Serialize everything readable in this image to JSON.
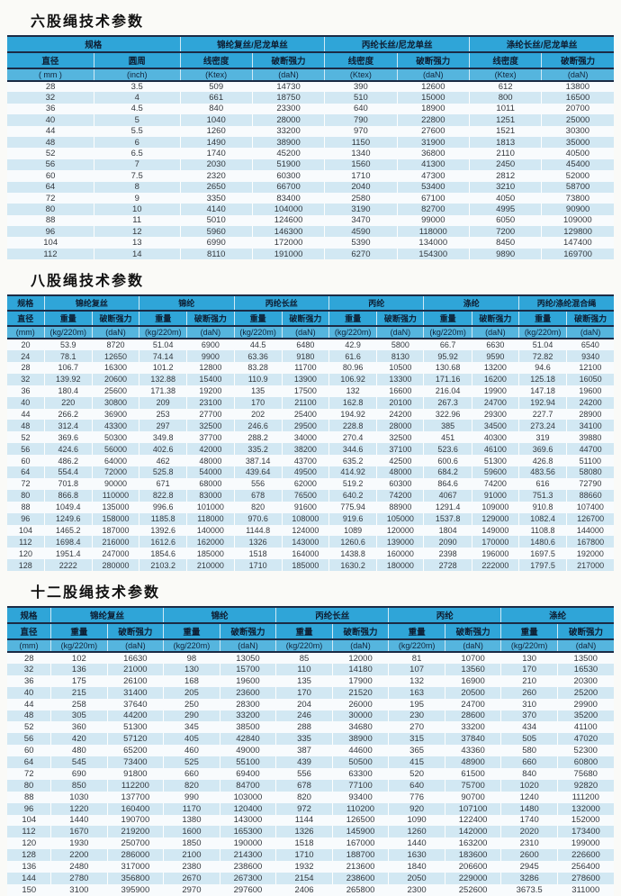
{
  "colors": {
    "header_blue": "#2fa5d8",
    "unit_row_blue": "#55b5de",
    "dark_line": "#1b2b45",
    "striped_row": "#d2e8f3",
    "plain_row": "#f8fbfd"
  },
  "tables": [
    {
      "title": "六股绳技术参数",
      "col_widths": [
        "14.3%",
        "14.2%",
        "11.9%",
        "11.95%",
        "11.9%",
        "11.95%",
        "11.9%",
        "11.9%"
      ],
      "groups": [
        {
          "label": "规格",
          "span": 2
        },
        {
          "label": "锦纶复丝/尼龙单丝",
          "span": 2
        },
        {
          "label": "丙纶长丝/尼龙单丝",
          "span": 2
        },
        {
          "label": "涤纶长丝/尼龙单丝",
          "span": 2
        }
      ],
      "subheaders": [
        "直径",
        "圆周",
        "线密度",
        "破断强力",
        "线密度",
        "破断强力",
        "线密度",
        "破断强力"
      ],
      "units": [
        "( mm )",
        "(inch)",
        "(Ktex)",
        "(daN)",
        "(Ktex)",
        "(daN)",
        "(Ktex)",
        "(daN)"
      ],
      "rows": [
        [
          "28",
          "3.5",
          "509",
          "14730",
          "390",
          "12600",
          "612",
          "13800"
        ],
        [
          "32",
          "4",
          "661",
          "18750",
          "510",
          "15000",
          "800",
          "16500"
        ],
        [
          "36",
          "4.5",
          "840",
          "23300",
          "640",
          "18900",
          "1011",
          "20700"
        ],
        [
          "40",
          "5",
          "1040",
          "28000",
          "790",
          "22800",
          "1251",
          "25000"
        ],
        [
          "44",
          "5.5",
          "1260",
          "33200",
          "970",
          "27600",
          "1521",
          "30300"
        ],
        [
          "48",
          "6",
          "1490",
          "38900",
          "1150",
          "31900",
          "1813",
          "35000"
        ],
        [
          "52",
          "6.5",
          "1740",
          "45200",
          "1340",
          "36800",
          "2110",
          "40500"
        ],
        [
          "56",
          "7",
          "2030",
          "51900",
          "1560",
          "41300",
          "2450",
          "45400"
        ],
        [
          "60",
          "7.5",
          "2320",
          "60300",
          "1710",
          "47300",
          "2812",
          "52000"
        ],
        [
          "64",
          "8",
          "2650",
          "66700",
          "2040",
          "53400",
          "3210",
          "58700"
        ],
        [
          "72",
          "9",
          "3350",
          "83400",
          "2580",
          "67100",
          "4050",
          "73800"
        ],
        [
          "80",
          "10",
          "4140",
          "104000",
          "3190",
          "82700",
          "4995",
          "90900"
        ],
        [
          "88",
          "11",
          "5010",
          "124600",
          "3470",
          "99000",
          "6050",
          "109000"
        ],
        [
          "96",
          "12",
          "5960",
          "146300",
          "4590",
          "118000",
          "7200",
          "129800"
        ],
        [
          "104",
          "13",
          "6990",
          "172000",
          "5390",
          "134000",
          "8450",
          "147400"
        ],
        [
          "112",
          "14",
          "8110",
          "191000",
          "6270",
          "154300",
          "9890",
          "169700"
        ]
      ]
    },
    {
      "title": "八股绳技术参数",
      "col_widths": [
        "6.1%",
        "7.9%",
        "7.75%",
        "7.9%",
        "7.75%",
        "7.9%",
        "7.75%",
        "7.9%",
        "7.75%",
        "7.9%",
        "7.75%",
        "7.9%",
        "7.75%"
      ],
      "groups": [
        {
          "label": "规格",
          "span": 1
        },
        {
          "label": "锦纶复丝",
          "span": 2
        },
        {
          "label": "锦纶",
          "span": 2
        },
        {
          "label": "丙纶长丝",
          "span": 2
        },
        {
          "label": "丙纶",
          "span": 2
        },
        {
          "label": "涤纶",
          "span": 2
        },
        {
          "label": "丙纶/涤纶混合绳",
          "span": 2
        }
      ],
      "subheaders": [
        "直径",
        "重量",
        "破断强力",
        "重量",
        "破断强力",
        "重量",
        "破断强力",
        "重量",
        "破断强力",
        "重量",
        "破断强力",
        "重量",
        "破断强力"
      ],
      "units": [
        "(mm)",
        "(kg/220m)",
        "(daN)",
        "(kg/220m)",
        "(daN)",
        "(kg/220m)",
        "(daN)",
        "(kg/220m)",
        "(daN)",
        "(kg/220m)",
        "(daN)",
        "(kg/220m)",
        "(daN)"
      ],
      "rows": [
        [
          "20",
          "53.9",
          "8720",
          "51.04",
          "6900",
          "44.5",
          "6480",
          "42.9",
          "5800",
          "66.7",
          "6630",
          "51.04",
          "6540"
        ],
        [
          "24",
          "78.1",
          "12650",
          "74.14",
          "9900",
          "63.36",
          "9180",
          "61.6",
          "8130",
          "95.92",
          "9590",
          "72.82",
          "9340"
        ],
        [
          "28",
          "106.7",
          "16300",
          "101.2",
          "12800",
          "83.28",
          "11700",
          "80.96",
          "10500",
          "130.68",
          "13200",
          "94.6",
          "12100"
        ],
        [
          "32",
          "139.92",
          "20600",
          "132.88",
          "15400",
          "110.9",
          "13900",
          "106.92",
          "13300",
          "171.16",
          "16200",
          "125.18",
          "16050"
        ],
        [
          "36",
          "180.4",
          "25600",
          "171.38",
          "19200",
          "135",
          "17500",
          "132",
          "16600",
          "216.04",
          "19900",
          "147.18",
          "19600"
        ],
        [
          "40",
          "220",
          "30800",
          "209",
          "23100",
          "170",
          "21100",
          "162.8",
          "20100",
          "267.3",
          "24700",
          "192.94",
          "24200"
        ],
        [
          "44",
          "266.2",
          "36900",
          "253",
          "27700",
          "202",
          "25400",
          "194.92",
          "24200",
          "322.96",
          "29300",
          "227.7",
          "28900"
        ],
        [
          "48",
          "312.4",
          "43300",
          "297",
          "32500",
          "246.6",
          "29500",
          "228.8",
          "28000",
          "385",
          "34500",
          "273.24",
          "34100"
        ],
        [
          "52",
          "369.6",
          "50300",
          "349.8",
          "37700",
          "288.2",
          "34000",
          "270.4",
          "32500",
          "451",
          "40300",
          "319",
          "39880"
        ],
        [
          "56",
          "424.6",
          "56000",
          "402.6",
          "42000",
          "335.2",
          "38200",
          "344.6",
          "37100",
          "523.6",
          "46100",
          "369.6",
          "44700"
        ],
        [
          "60",
          "486.2",
          "64000",
          "462",
          "48000",
          "387.14",
          "43700",
          "635.2",
          "42500",
          "600.6",
          "51300",
          "426.8",
          "51100"
        ],
        [
          "64",
          "554.4",
          "72000",
          "525.8",
          "54000",
          "439.64",
          "49500",
          "414.92",
          "48000",
          "684.2",
          "59600",
          "483.56",
          "58080"
        ],
        [
          "72",
          "701.8",
          "90000",
          "671",
          "68000",
          "556",
          "62000",
          "519.2",
          "60300",
          "864.6",
          "74200",
          "616",
          "72790"
        ],
        [
          "80",
          "866.8",
          "110000",
          "822.8",
          "83000",
          "678",
          "76500",
          "640.2",
          "74200",
          "4067",
          "91000",
          "751.3",
          "88660"
        ],
        [
          "88",
          "1049.4",
          "135000",
          "996.6",
          "101000",
          "820",
          "91600",
          "775.94",
          "88900",
          "1291.4",
          "109000",
          "910.8",
          "107400"
        ],
        [
          "96",
          "1249.6",
          "158000",
          "1185.8",
          "118000",
          "970.6",
          "108000",
          "919.6",
          "105000",
          "1537.8",
          "129000",
          "1082.4",
          "126700"
        ],
        [
          "104",
          "1465.2",
          "187000",
          "1392.6",
          "140000",
          "1144.8",
          "124000",
          "1089",
          "120000",
          "1804",
          "149000",
          "1108.8",
          "144000"
        ],
        [
          "112",
          "1698.4",
          "216000",
          "1612.6",
          "162000",
          "1326",
          "143000",
          "1260.6",
          "139000",
          "2090",
          "170000",
          "1480.6",
          "167800"
        ],
        [
          "120",
          "1951.4",
          "247000",
          "1854.6",
          "185000",
          "1518",
          "164000",
          "1438.8",
          "160000",
          "2398",
          "196000",
          "1697.5",
          "192000"
        ],
        [
          "128",
          "2222",
          "280000",
          "2103.2",
          "210000",
          "1710",
          "185000",
          "1630.2",
          "180000",
          "2728",
          "222000",
          "1797.5",
          "217000"
        ]
      ]
    },
    {
      "title": "十二股绳技术参数",
      "col_widths": [
        "7.2%",
        "9.3%",
        "9.26%",
        "9.3%",
        "9.26%",
        "9.3%",
        "9.26%",
        "9.3%",
        "9.26%",
        "9.3%",
        "9.26%"
      ],
      "groups": [
        {
          "label": "规格",
          "span": 1
        },
        {
          "label": "锦纶复丝",
          "span": 2
        },
        {
          "label": "锦纶",
          "span": 2
        },
        {
          "label": "丙纶长丝",
          "span": 2
        },
        {
          "label": "丙纶",
          "span": 2
        },
        {
          "label": "涤纶",
          "span": 2
        }
      ],
      "subheaders": [
        "直径",
        "重量",
        "破断强力",
        "重量",
        "破断强力",
        "重量",
        "破断强力",
        "重量",
        "破断强力",
        "重量",
        "破断强力"
      ],
      "units": [
        "(mm)",
        "(kg/220m)",
        "(daN)",
        "(kg/220m)",
        "(daN)",
        "(kg/220m)",
        "(daN)",
        "(kg/220m)",
        "(daN)",
        "(kg/220m)",
        "(daN)"
      ],
      "rows": [
        [
          "28",
          "102",
          "16630",
          "98",
          "13050",
          "85",
          "12000",
          "81",
          "10700",
          "130",
          "13500"
        ],
        [
          "32",
          "136",
          "21000",
          "130",
          "15700",
          "110",
          "14180",
          "107",
          "13560",
          "170",
          "16530"
        ],
        [
          "36",
          "175",
          "26100",
          "168",
          "19600",
          "135",
          "17900",
          "132",
          "16900",
          "210",
          "20300"
        ],
        [
          "40",
          "215",
          "31400",
          "205",
          "23600",
          "170",
          "21520",
          "163",
          "20500",
          "260",
          "25200"
        ],
        [
          "44",
          "258",
          "37640",
          "250",
          "28300",
          "204",
          "26000",
          "195",
          "24700",
          "310",
          "29900"
        ],
        [
          "48",
          "305",
          "44200",
          "290",
          "33200",
          "246",
          "30000",
          "230",
          "28600",
          "370",
          "35200"
        ],
        [
          "52",
          "360",
          "51300",
          "345",
          "38500",
          "288",
          "34680",
          "270",
          "33200",
          "434",
          "41100"
        ],
        [
          "56",
          "420",
          "57120",
          "405",
          "42840",
          "335",
          "38900",
          "315",
          "37840",
          "505",
          "47020"
        ],
        [
          "60",
          "480",
          "65200",
          "460",
          "49000",
          "387",
          "44600",
          "365",
          "43360",
          "580",
          "52300"
        ],
        [
          "64",
          "545",
          "73400",
          "525",
          "55100",
          "439",
          "50500",
          "415",
          "48900",
          "660",
          "60800"
        ],
        [
          "72",
          "690",
          "91800",
          "660",
          "69400",
          "556",
          "63300",
          "520",
          "61500",
          "840",
          "75680"
        ],
        [
          "80",
          "850",
          "112200",
          "820",
          "84700",
          "678",
          "77100",
          "640",
          "75700",
          "1020",
          "92820"
        ],
        [
          "88",
          "1030",
          "137700",
          "990",
          "103000",
          "820",
          "93400",
          "776",
          "90700",
          "1240",
          "111200"
        ],
        [
          "96",
          "1220",
          "160400",
          "1170",
          "120400",
          "972",
          "110200",
          "920",
          "107100",
          "1480",
          "132000"
        ],
        [
          "104",
          "1440",
          "190700",
          "1380",
          "143000",
          "1144",
          "126500",
          "1090",
          "122400",
          "1740",
          "152000"
        ],
        [
          "112",
          "1670",
          "219200",
          "1600",
          "165300",
          "1326",
          "145900",
          "1260",
          "142000",
          "2020",
          "173400"
        ],
        [
          "120",
          "1930",
          "250700",
          "1850",
          "190000",
          "1518",
          "167000",
          "1440",
          "163200",
          "2310",
          "199000"
        ],
        [
          "128",
          "2200",
          "286000",
          "2100",
          "214300",
          "1710",
          "188700",
          "1630",
          "183600",
          "2600",
          "226600"
        ],
        [
          "136",
          "2480",
          "317000",
          "2380",
          "238600",
          "1932",
          "213600",
          "1840",
          "206600",
          "2945",
          "256400"
        ],
        [
          "144",
          "2780",
          "356800",
          "2670",
          "267300",
          "2154",
          "238600",
          "2050",
          "229000",
          "3286",
          "278600"
        ],
        [
          "150",
          "3100",
          "395900",
          "2970",
          "297600",
          "2406",
          "265800",
          "2300",
          "252600",
          "3673.5",
          "311000"
        ]
      ]
    }
  ]
}
